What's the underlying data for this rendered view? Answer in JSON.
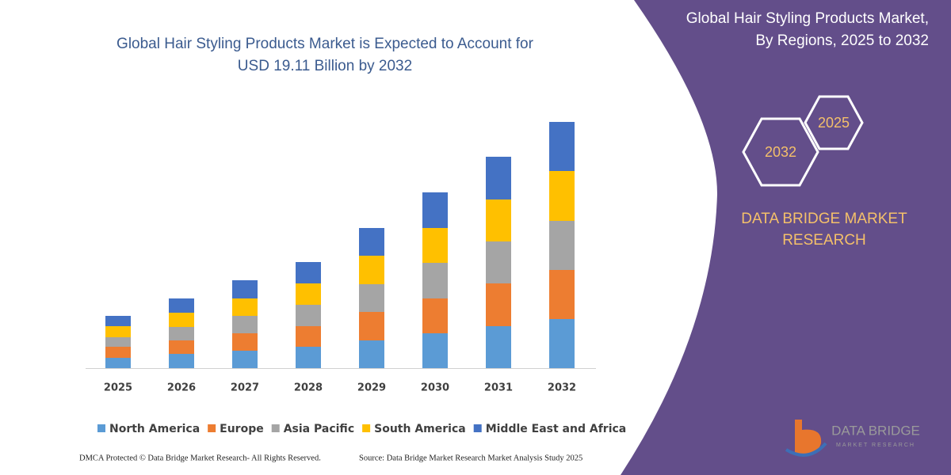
{
  "chart_data": {
    "type": "stacked-bar",
    "title": [
      "Global Hair Styling Products Market is Expected to Account for",
      "USD 19.11 Billion by 2032"
    ],
    "categories": [
      "2025",
      "2026",
      "2027",
      "2028",
      "2029",
      "2030",
      "2031",
      "2032"
    ],
    "series": [
      {
        "name": "North America",
        "color": "#5b9bd5",
        "values": [
          13,
          18,
          22,
          27,
          35,
          44,
          53,
          62
        ]
      },
      {
        "name": "Europe",
        "color": "#ed7d31",
        "values": [
          14,
          17,
          22,
          26,
          36,
          44,
          54,
          62
        ]
      },
      {
        "name": "Asia Pacific",
        "color": "#a5a5a5",
        "values": [
          12,
          17,
          22,
          27,
          35,
          45,
          53,
          62
        ]
      },
      {
        "name": "South America",
        "color": "#ffc000",
        "values": [
          14,
          18,
          22,
          27,
          36,
          44,
          53,
          63
        ]
      },
      {
        "name": "Middle East and Africa",
        "color": "#4472c4",
        "values": [
          13,
          18,
          23,
          27,
          35,
          45,
          54,
          62
        ]
      }
    ],
    "ylim": [
      0,
      320
    ],
    "grid": false,
    "legend": "bottom"
  },
  "panel": {
    "title": [
      "Global Hair Styling Products Market,",
      "By Regions, 2025 to 2032"
    ],
    "hexagons": [
      "2025",
      "2032"
    ],
    "brand": [
      "DATA BRIDGE MARKET",
      "RESEARCH"
    ]
  },
  "logo": {
    "name": "DATA BRIDGE",
    "tagline": "MARKET RESEARCH"
  },
  "footer": {
    "left": "DMCA Protected © Data Bridge Market Research-  All Rights Reserved.",
    "right": "Source: Data Bridge Market Research  Market Analysis Study 2025"
  }
}
